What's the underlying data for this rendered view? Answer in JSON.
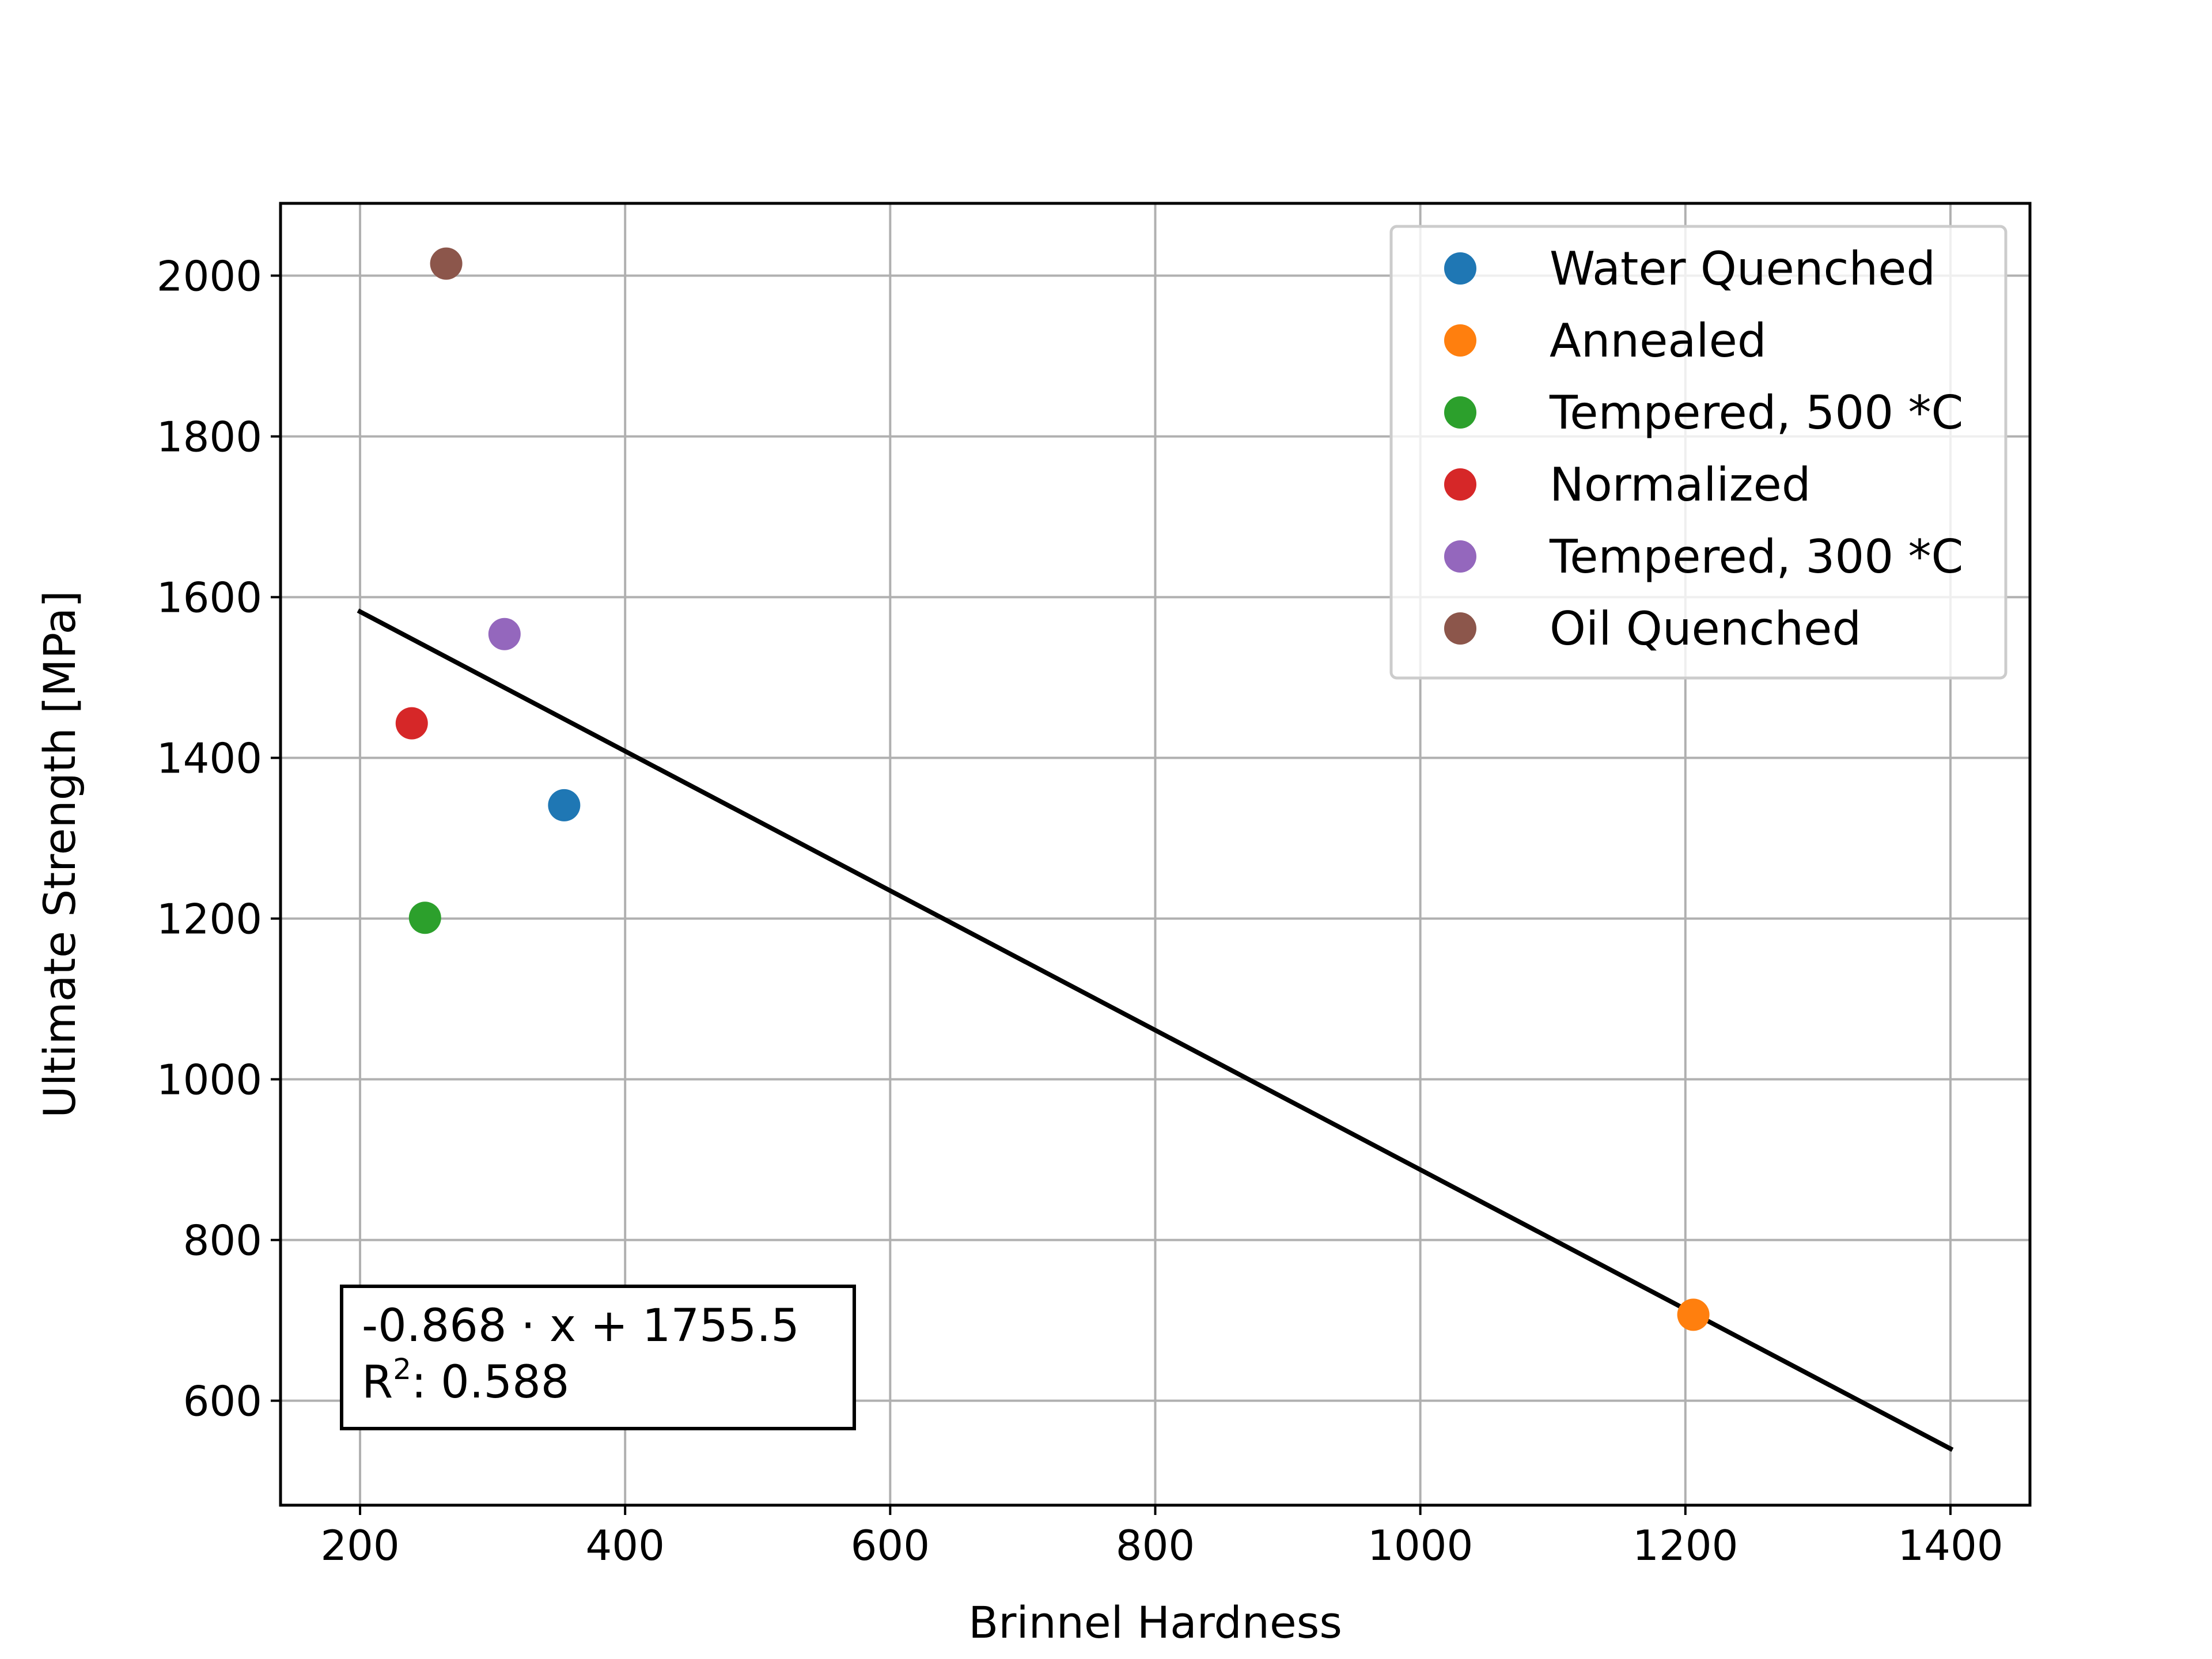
{
  "chart_data": {
    "type": "scatter",
    "title": "",
    "xlabel": "Brinnel Hardness",
    "ylabel": "Ultimate Strength [MPa]",
    "xlim": [
      140,
      1460
    ],
    "ylim": [
      470,
      2090
    ],
    "xticks": [
      200,
      400,
      600,
      800,
      1000,
      1200,
      1400
    ],
    "yticks": [
      600,
      800,
      1000,
      1200,
      1400,
      1600,
      1800,
      2000
    ],
    "grid": true,
    "legend_position": "top-right",
    "series": [
      {
        "name": "Water Quenched",
        "color": "#1f77b4",
        "points": [
          [
            354,
            1341
          ]
        ]
      },
      {
        "name": "Annealed",
        "color": "#ff7f0e",
        "points": [
          [
            1206,
            707
          ]
        ]
      },
      {
        "name": "Tempered, 500 *C",
        "color": "#2ca02c",
        "points": [
          [
            249,
            1201
          ]
        ]
      },
      {
        "name": "Normalized",
        "color": "#d62728",
        "points": [
          [
            239,
            1443
          ]
        ]
      },
      {
        "name": "Tempered, 300 *C",
        "color": "#9467bd",
        "points": [
          [
            309,
            1554
          ]
        ]
      },
      {
        "name": "Oil Quenched",
        "color": "#8c564b",
        "points": [
          [
            265,
            2015
          ]
        ]
      }
    ],
    "fit_line": {
      "slope": -0.868,
      "intercept": 1755.5,
      "x_range": [
        200,
        1400
      ],
      "color": "#000000"
    },
    "annotation": {
      "equation": "-0.868 · x + 1755.5",
      "r2_prefix": "R",
      "r2_superscript": "2",
      "r2_value": ": 0.588"
    }
  }
}
